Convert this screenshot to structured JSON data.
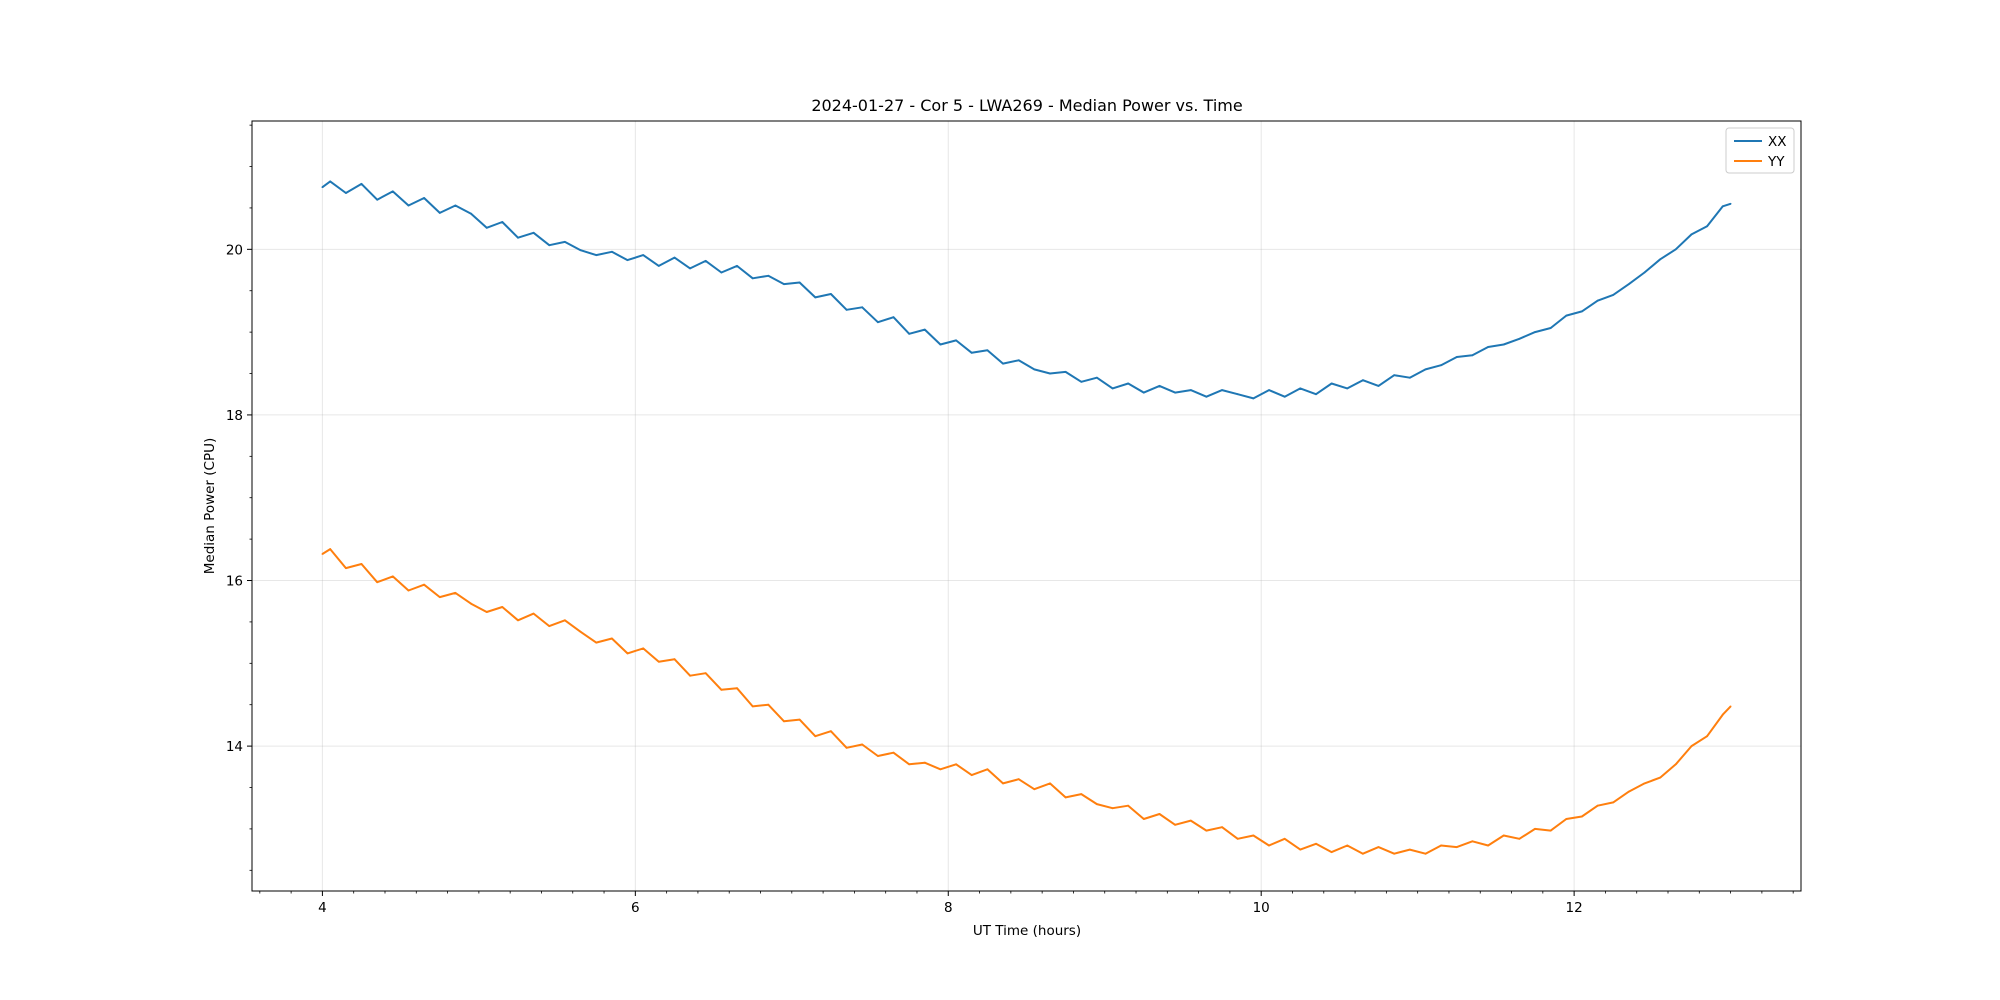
{
  "chart_data": {
    "type": "line",
    "title": "2024-01-27 - Cor 5 - LWA269 - Median Power vs. Time",
    "xlabel": "UT Time (hours)",
    "ylabel": "Median Power (CPU)",
    "xlim": [
      3.55,
      13.45
    ],
    "ylim": [
      12.25,
      21.55
    ],
    "xticks": [
      4,
      6,
      8,
      10,
      12
    ],
    "yticks": [
      14,
      16,
      18,
      20
    ],
    "grid": true,
    "legend": "top-right",
    "series": [
      {
        "name": "XX",
        "color": "#1f77b4",
        "x": [
          4.0,
          4.05,
          4.15,
          4.25,
          4.35,
          4.45,
          4.55,
          4.65,
          4.75,
          4.85,
          4.95,
          5.05,
          5.15,
          5.25,
          5.35,
          5.45,
          5.55,
          5.65,
          5.75,
          5.85,
          5.95,
          6.05,
          6.15,
          6.25,
          6.35,
          6.45,
          6.55,
          6.65,
          6.75,
          6.85,
          6.95,
          7.05,
          7.15,
          7.25,
          7.35,
          7.45,
          7.55,
          7.65,
          7.75,
          7.85,
          7.95,
          8.05,
          8.15,
          8.25,
          8.35,
          8.45,
          8.55,
          8.65,
          8.75,
          8.85,
          8.95,
          9.05,
          9.15,
          9.25,
          9.35,
          9.45,
          9.55,
          9.65,
          9.75,
          9.85,
          9.95,
          10.05,
          10.15,
          10.25,
          10.35,
          10.45,
          10.55,
          10.65,
          10.75,
          10.85,
          10.95,
          11.05,
          11.15,
          11.25,
          11.35,
          11.45,
          11.55,
          11.65,
          11.75,
          11.85,
          11.95,
          12.05,
          12.15,
          12.25,
          12.35,
          12.45,
          12.55,
          12.65,
          12.75,
          12.85,
          12.95,
          13.0
        ],
        "values": [
          20.75,
          20.82,
          20.68,
          20.79,
          20.6,
          20.7,
          20.53,
          20.62,
          20.44,
          20.53,
          20.43,
          20.26,
          20.33,
          20.14,
          20.2,
          20.05,
          20.09,
          19.99,
          19.93,
          19.97,
          19.87,
          19.93,
          19.8,
          19.9,
          19.77,
          19.86,
          19.72,
          19.8,
          19.65,
          19.68,
          19.58,
          19.6,
          19.42,
          19.46,
          19.27,
          19.3,
          19.12,
          19.18,
          18.98,
          19.03,
          18.85,
          18.9,
          18.75,
          18.78,
          18.62,
          18.66,
          18.55,
          18.5,
          18.52,
          18.4,
          18.45,
          18.32,
          18.38,
          18.27,
          18.35,
          18.27,
          18.3,
          18.22,
          18.3,
          18.25,
          18.2,
          18.3,
          18.22,
          18.32,
          18.25,
          18.38,
          18.32,
          18.42,
          18.35,
          18.48,
          18.45,
          18.55,
          18.6,
          18.7,
          18.72,
          18.82,
          18.85,
          18.92,
          19.0,
          19.05,
          19.2,
          19.25,
          19.38,
          19.45,
          19.58,
          19.72,
          19.88,
          20.0,
          20.18,
          20.28,
          20.52,
          20.55
        ]
      },
      {
        "name": "YY",
        "color": "#ff7f0e",
        "x": [
          4.0,
          4.05,
          4.15,
          4.25,
          4.35,
          4.45,
          4.55,
          4.65,
          4.75,
          4.85,
          4.95,
          5.05,
          5.15,
          5.25,
          5.35,
          5.45,
          5.55,
          5.65,
          5.75,
          5.85,
          5.95,
          6.05,
          6.15,
          6.25,
          6.35,
          6.45,
          6.55,
          6.65,
          6.75,
          6.85,
          6.95,
          7.05,
          7.15,
          7.25,
          7.35,
          7.45,
          7.55,
          7.65,
          7.75,
          7.85,
          7.95,
          8.05,
          8.15,
          8.25,
          8.35,
          8.45,
          8.55,
          8.65,
          8.75,
          8.85,
          8.95,
          9.05,
          9.15,
          9.25,
          9.35,
          9.45,
          9.55,
          9.65,
          9.75,
          9.85,
          9.95,
          10.05,
          10.15,
          10.25,
          10.35,
          10.45,
          10.55,
          10.65,
          10.75,
          10.85,
          10.95,
          11.05,
          11.15,
          11.25,
          11.35,
          11.45,
          11.55,
          11.65,
          11.75,
          11.85,
          11.95,
          12.05,
          12.15,
          12.25,
          12.35,
          12.45,
          12.55,
          12.65,
          12.75,
          12.85,
          12.95,
          13.0
        ],
        "values": [
          16.32,
          16.38,
          16.15,
          16.2,
          15.98,
          16.05,
          15.88,
          15.95,
          15.8,
          15.85,
          15.72,
          15.62,
          15.68,
          15.52,
          15.6,
          15.45,
          15.52,
          15.38,
          15.25,
          15.3,
          15.12,
          15.18,
          15.02,
          15.05,
          14.85,
          14.88,
          14.68,
          14.7,
          14.48,
          14.5,
          14.3,
          14.32,
          14.12,
          14.18,
          13.98,
          14.02,
          13.88,
          13.92,
          13.78,
          13.8,
          13.72,
          13.78,
          13.65,
          13.72,
          13.55,
          13.6,
          13.48,
          13.55,
          13.38,
          13.42,
          13.3,
          13.25,
          13.28,
          13.12,
          13.18,
          13.05,
          13.1,
          12.98,
          13.02,
          12.88,
          12.92,
          12.8,
          12.88,
          12.75,
          12.82,
          12.72,
          12.8,
          12.7,
          12.78,
          12.7,
          12.75,
          12.7,
          12.8,
          12.78,
          12.85,
          12.8,
          12.92,
          12.88,
          13.0,
          12.98,
          13.12,
          13.15,
          13.28,
          13.32,
          13.45,
          13.55,
          13.62,
          13.78,
          14.0,
          14.12,
          14.38,
          14.48
        ]
      }
    ]
  }
}
